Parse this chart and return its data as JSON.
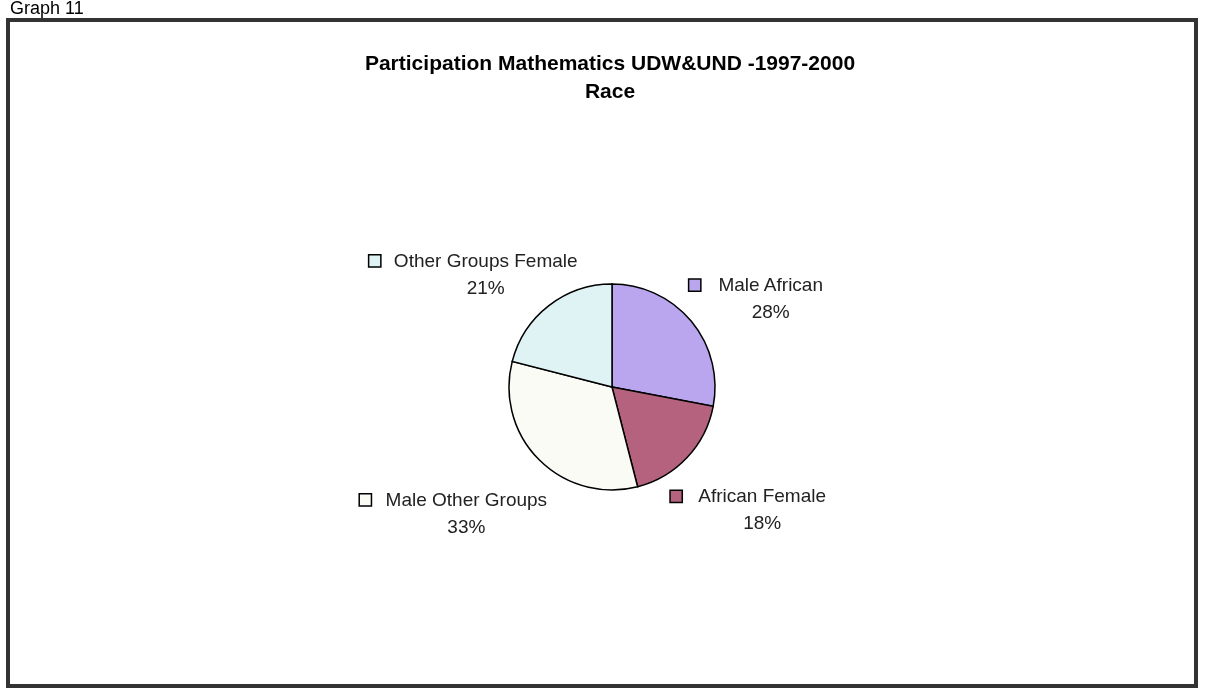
{
  "chart_data": {
    "type": "pie",
    "title": "Participation  Mathematics UDW&UND -1997-2000",
    "subtitle": "Race",
    "annotations": [
      "Graph 11"
    ],
    "categories": [
      "Male African",
      "African Female",
      "Male Other Groups",
      "Other Groups Female"
    ],
    "values": [
      28,
      18,
      33,
      21
    ],
    "legend": "top left",
    "value_labels": [
      "28%",
      "18%",
      "33%",
      "21%"
    ],
    "colors": [
      "#b9a6ee",
      "#b5627f",
      "#fbfbf5",
      "#dff3f5"
    ]
  }
}
